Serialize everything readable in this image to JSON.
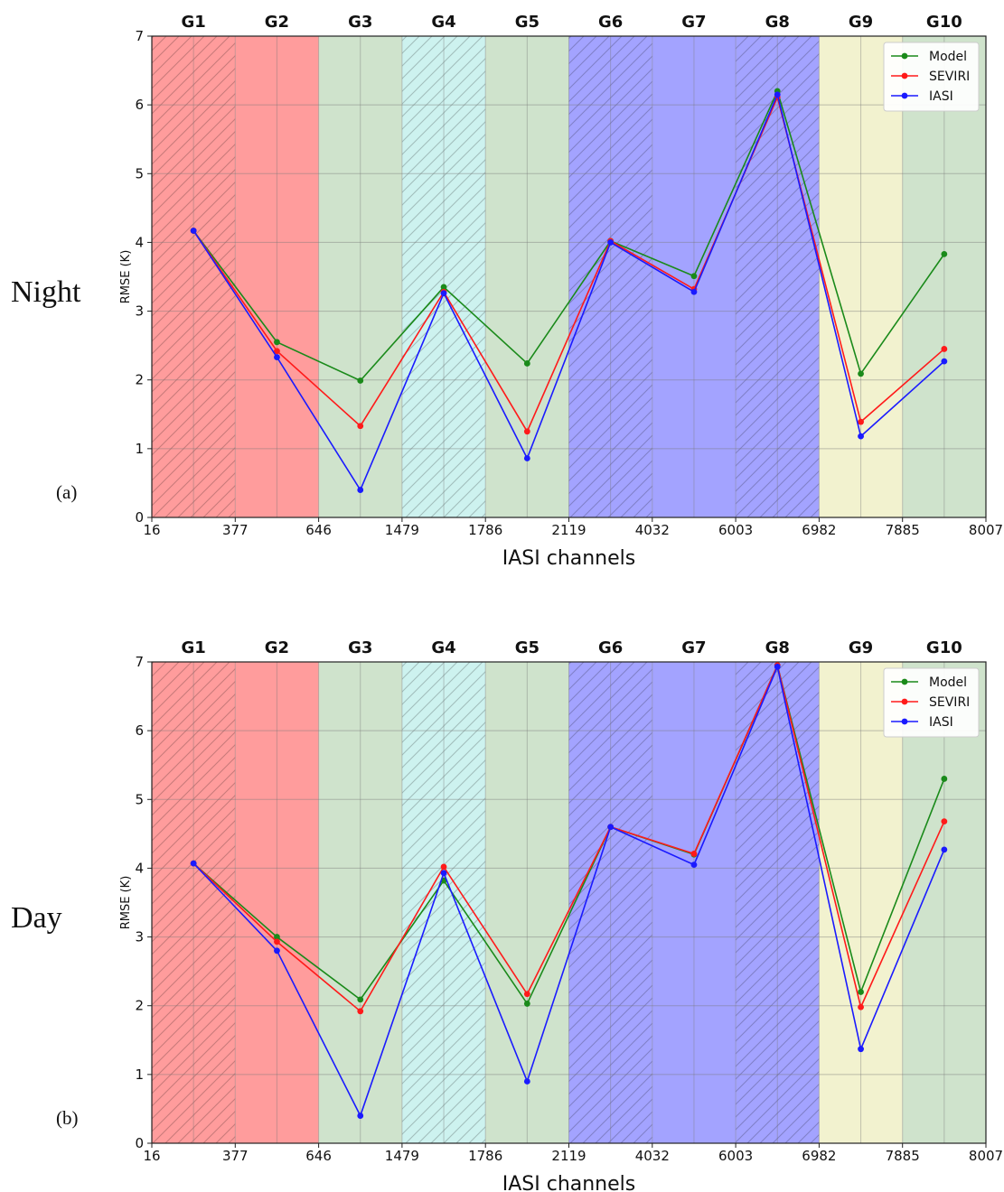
{
  "chart_data": [
    {
      "panel": "(a)",
      "side_label": "Night",
      "type": "line",
      "xlabel": "IASI channels",
      "ylabel": "RMSE (K)",
      "ylim": [
        0,
        7
      ],
      "yticks": [
        "0",
        "1",
        "2",
        "3",
        "4",
        "5",
        "6",
        "7"
      ],
      "xticks": [
        "16",
        "377",
        "646",
        "1479",
        "1786",
        "2119",
        "4032",
        "6003",
        "6982",
        "7885",
        "8007"
      ],
      "groups": [
        "G1",
        "G2",
        "G3",
        "G4",
        "G5",
        "G6",
        "G7",
        "G8",
        "G9",
        "G10"
      ],
      "group_colors": [
        "#ff9c9c",
        "#ff9c9c",
        "#cfe3cc",
        "#cdf2ef",
        "#cfe3cc",
        "#a3a3ff",
        "#a3a3ff",
        "#a3a3ff",
        "#f2f2cf",
        "#cfe3cc"
      ],
      "group_hatched": [
        true,
        false,
        false,
        true,
        false,
        true,
        false,
        true,
        false,
        false
      ],
      "grid": true,
      "legend_position": "top-right",
      "series": [
        {
          "name": "Model",
          "color": "#1a8a1a",
          "values": [
            4.17,
            2.55,
            1.99,
            3.35,
            2.24,
            4.02,
            3.51,
            6.2,
            2.09,
            3.83
          ]
        },
        {
          "name": "SEVIRI",
          "color": "#ff1a1a",
          "values": [
            4.17,
            2.42,
            1.33,
            3.28,
            1.25,
            4.02,
            3.32,
            6.11,
            1.39,
            2.45
          ]
        },
        {
          "name": "IASI",
          "color": "#1a1aff",
          "values": [
            4.17,
            2.33,
            0.4,
            3.26,
            0.86,
            4.0,
            3.28,
            6.15,
            1.18,
            2.27
          ]
        }
      ]
    },
    {
      "panel": "(b)",
      "side_label": "Day",
      "type": "line",
      "xlabel": "IASI channels",
      "ylabel": "RMSE (K)",
      "ylim": [
        0,
        7
      ],
      "yticks": [
        "0",
        "1",
        "2",
        "3",
        "4",
        "5",
        "6",
        "7"
      ],
      "xticks": [
        "16",
        "377",
        "646",
        "1479",
        "1786",
        "2119",
        "4032",
        "6003",
        "6982",
        "7885",
        "8007"
      ],
      "groups": [
        "G1",
        "G2",
        "G3",
        "G4",
        "G5",
        "G6",
        "G7",
        "G8",
        "G9",
        "G10"
      ],
      "group_colors": [
        "#ff9c9c",
        "#ff9c9c",
        "#cfe3cc",
        "#cdf2ef",
        "#cfe3cc",
        "#a3a3ff",
        "#a3a3ff",
        "#a3a3ff",
        "#f2f2cf",
        "#cfe3cc"
      ],
      "group_hatched": [
        true,
        false,
        false,
        true,
        false,
        true,
        false,
        true,
        false,
        false
      ],
      "grid": true,
      "legend_position": "top-right",
      "series": [
        {
          "name": "Model",
          "color": "#1a8a1a",
          "values": [
            4.07,
            3.0,
            2.09,
            3.82,
            2.03,
            4.6,
            4.2,
            6.95,
            2.2,
            5.3
          ]
        },
        {
          "name": "SEVIRI",
          "color": "#ff1a1a",
          "values": [
            4.07,
            2.93,
            1.92,
            4.02,
            2.17,
            4.6,
            4.21,
            6.95,
            1.98,
            4.68
          ]
        },
        {
          "name": "IASI",
          "color": "#1a1aff",
          "values": [
            4.07,
            2.8,
            0.4,
            3.93,
            0.9,
            4.6,
            4.05,
            6.93,
            1.37,
            4.27
          ]
        }
      ]
    }
  ]
}
